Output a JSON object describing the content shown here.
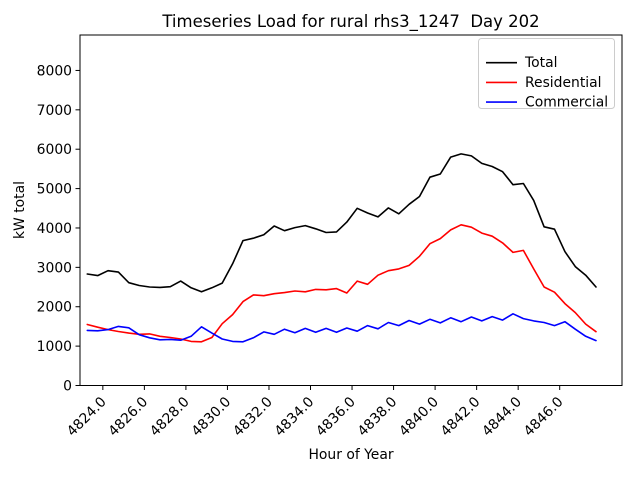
{
  "chart_data": {
    "type": "line",
    "title": "Timeseries Load for rural rhs3_1247  Day 202",
    "xlabel": "Hour of Year",
    "ylabel": "kW total",
    "xlim": [
      4822.9,
      4849.0
    ],
    "ylim": [
      0,
      8900
    ],
    "grid": false,
    "legend_position": "upper right",
    "xtick_labels": [
      "4824.0",
      "4826.0",
      "4828.0",
      "4830.0",
      "4832.0",
      "4834.0",
      "4836.0",
      "4838.0",
      "4840.0",
      "4842.0",
      "4844.0",
      "4846.0"
    ],
    "ytick_labels": [
      "0",
      "1000",
      "2000",
      "3000",
      "4000",
      "5000",
      "6000",
      "7000",
      "8000"
    ],
    "x": [
      4823.25,
      4823.75,
      4824.25,
      4824.75,
      4825.25,
      4825.75,
      4826.25,
      4826.75,
      4827.25,
      4827.75,
      4828.25,
      4828.75,
      4829.25,
      4829.75,
      4830.25,
      4830.75,
      4831.25,
      4831.75,
      4832.25,
      4832.75,
      4833.25,
      4833.75,
      4834.25,
      4834.75,
      4835.25,
      4835.75,
      4836.25,
      4836.75,
      4837.25,
      4837.75,
      4838.25,
      4838.75,
      4839.25,
      4839.75,
      4840.25,
      4840.75,
      4841.25,
      4841.75,
      4842.25,
      4842.75,
      4843.25,
      4843.75,
      4844.25,
      4844.75,
      4845.25,
      4845.75,
      4846.25,
      4846.75,
      4847.25,
      4847.75
    ],
    "series": [
      {
        "name": "Total",
        "color": "#000000",
        "values": [
          2830,
          2790,
          2915,
          2880,
          2610,
          2540,
          2500,
          2490,
          2510,
          2650,
          2480,
          2380,
          2480,
          2600,
          3090,
          3680,
          3740,
          3830,
          4050,
          3930,
          4010,
          4060,
          3980,
          3885,
          3900,
          4150,
          4500,
          4380,
          4280,
          4510,
          4360,
          4600,
          4800,
          5290,
          5370,
          5800,
          5880,
          5830,
          5640,
          5560,
          5430,
          5100,
          5130,
          4700,
          4030,
          3970,
          3400,
          3020,
          2800,
          2500
        ]
      },
      {
        "name": "Residential",
        "color": "#ff0000",
        "values": [
          1550,
          1480,
          1420,
          1370,
          1330,
          1300,
          1310,
          1250,
          1220,
          1180,
          1120,
          1110,
          1220,
          1570,
          1800,
          2130,
          2300,
          2280,
          2330,
          2360,
          2400,
          2380,
          2440,
          2430,
          2460,
          2350,
          2650,
          2570,
          2800,
          2915,
          2960,
          3050,
          3280,
          3600,
          3730,
          3950,
          4080,
          4020,
          3870,
          3790,
          3620,
          3380,
          3430,
          2960,
          2500,
          2370,
          2080,
          1850,
          1560,
          1365
        ]
      },
      {
        "name": "Commercial",
        "color": "#0000ff",
        "values": [
          1400,
          1390,
          1420,
          1500,
          1465,
          1290,
          1210,
          1160,
          1170,
          1150,
          1250,
          1490,
          1330,
          1180,
          1120,
          1110,
          1210,
          1360,
          1300,
          1430,
          1340,
          1450,
          1350,
          1450,
          1350,
          1460,
          1380,
          1520,
          1440,
          1600,
          1520,
          1650,
          1560,
          1680,
          1590,
          1720,
          1620,
          1740,
          1640,
          1750,
          1660,
          1820,
          1700,
          1640,
          1600,
          1520,
          1620,
          1430,
          1250,
          1140
        ]
      }
    ]
  }
}
